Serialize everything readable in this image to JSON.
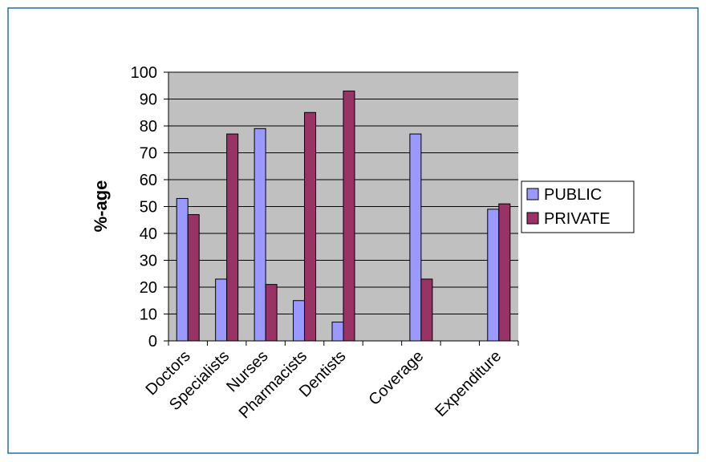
{
  "chart_data": {
    "type": "bar",
    "title": "",
    "xlabel": "",
    "ylabel": "%-age",
    "ylim": [
      0,
      100
    ],
    "yticks": [
      0,
      10,
      20,
      30,
      40,
      50,
      60,
      70,
      80,
      90,
      100
    ],
    "grid": "horizontal",
    "legend_position": "right",
    "categories": [
      "Doctors",
      "Specialists",
      "Nurses",
      "Pharmacists",
      "Dentists",
      "",
      "Coverage",
      "",
      "Expenditure"
    ],
    "series": [
      {
        "name": "PUBLIC",
        "color": "#9999ff",
        "values": [
          53,
          23,
          79,
          15,
          7,
          null,
          77,
          null,
          49
        ]
      },
      {
        "name": "PRIVATE",
        "color": "#993366",
        "values": [
          47,
          77,
          21,
          85,
          93,
          null,
          23,
          null,
          51
        ]
      }
    ],
    "colors": {
      "plot_background": "#c0c0c0",
      "frame_border": "#1f6fb5",
      "gridline": "#000000"
    }
  }
}
